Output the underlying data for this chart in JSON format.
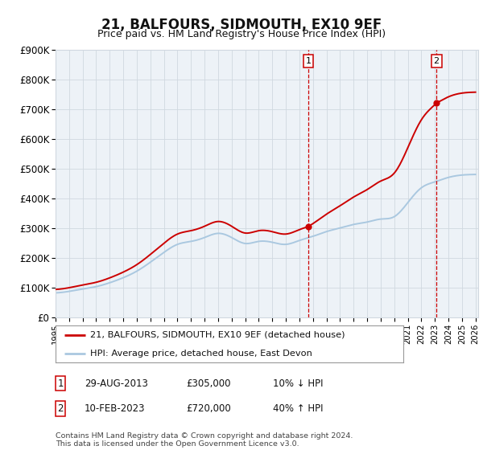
{
  "title": "21, BALFOURS, SIDMOUTH, EX10 9EF",
  "subtitle": "Price paid vs. HM Land Registry's House Price Index (HPI)",
  "ylabel_ticks": [
    "£0",
    "£100K",
    "£200K",
    "£300K",
    "£400K",
    "£500K",
    "£600K",
    "£700K",
    "£800K",
    "£900K"
  ],
  "ylim": [
    0,
    900000
  ],
  "xlim_start": 1995.3,
  "xlim_end": 2026.2,
  "sale1_year": 2013.66,
  "sale1_price": 305000,
  "sale2_year": 2023.12,
  "sale2_price": 720000,
  "legend_line1": "21, BALFOURS, SIDMOUTH, EX10 9EF (detached house)",
  "legend_line2": "HPI: Average price, detached house, East Devon",
  "annotation1_date": "29-AUG-2013",
  "annotation1_price": "£305,000",
  "annotation1_hpi": "10% ↓ HPI",
  "annotation2_date": "10-FEB-2023",
  "annotation2_price": "£720,000",
  "annotation2_hpi": "40% ↑ HPI",
  "footer": "Contains HM Land Registry data © Crown copyright and database right 2024.\nThis data is licensed under the Open Government Licence v3.0.",
  "hpi_color": "#aac8e0",
  "price_color": "#cc0000",
  "vline_color": "#cc0000",
  "grid_color": "#d0d8e0",
  "background_color": "#ffffff",
  "plot_bg_color": "#edf2f7",
  "hpi_years": [
    1995,
    1996,
    1997,
    1998,
    1999,
    2000,
    2001,
    2002,
    2003,
    2004,
    2005,
    2006,
    2007,
    2008,
    2009,
    2010,
    2011,
    2012,
    2013,
    2014,
    2015,
    2016,
    2017,
    2018,
    2019,
    2020,
    2021,
    2022,
    2023,
    2024,
    2025,
    2026
  ],
  "hpi_vals": [
    82000,
    87000,
    95000,
    103000,
    116000,
    133000,
    155000,
    185000,
    218000,
    245000,
    255000,
    268000,
    282000,
    268000,
    248000,
    255000,
    252000,
    245000,
    258000,
    272000,
    288000,
    300000,
    312000,
    320000,
    330000,
    338000,
    385000,
    435000,
    455000,
    470000,
    478000,
    480000
  ]
}
